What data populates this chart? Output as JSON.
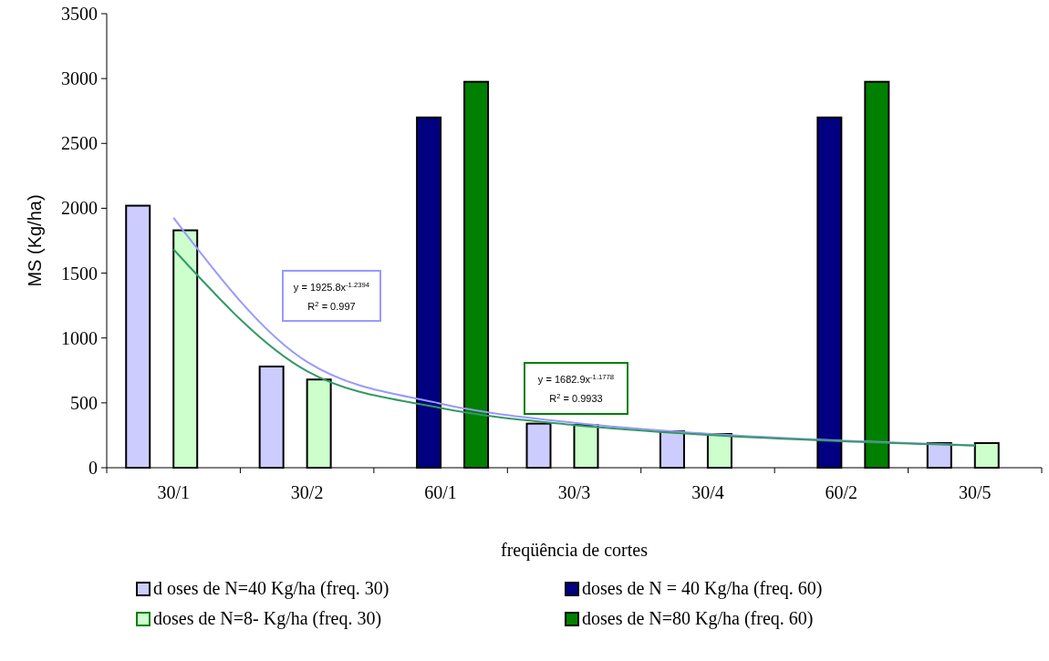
{
  "chart_data": {
    "type": "bar",
    "xlabel": "freqüência de cortes",
    "ylabel": "MS (Kg/ha)",
    "categories": [
      "30/1",
      "30/2",
      "60/1",
      "30/3",
      "30/4",
      "60/2",
      "30/5"
    ],
    "series": [
      {
        "name": "d oses de N=40 Kg/ha (freq. 30)",
        "color": "#ccccff",
        "values": [
          2020,
          780,
          null,
          340,
          280,
          null,
          190
        ]
      },
      {
        "name": "doses de N = 40 Kg/ha (freq. 60)",
        "color": "#000080",
        "values": [
          null,
          null,
          2700,
          null,
          null,
          2700,
          null
        ]
      },
      {
        "name": "doses de N=8- Kg/ha (freq. 30)",
        "color": "#ccffcc",
        "values": [
          1830,
          680,
          null,
          330,
          260,
          null,
          190
        ]
      },
      {
        "name": "doses de N=80 Kg/ha (freq. 60)",
        "color": "#008000",
        "values": [
          null,
          null,
          2975,
          null,
          null,
          2975,
          null
        ]
      },
      {
        "type": "line",
        "color": "#9999ff",
        "values": [
          1926,
          816,
          494,
          346,
          262,
          209,
          173
        ]
      },
      {
        "type": "line",
        "color": "#339966",
        "values": [
          1683,
          744,
          461,
          329,
          253,
          204,
          170
        ]
      }
    ],
    "ylim": [
      0,
      3500
    ],
    "yticks": [
      0,
      500,
      1000,
      1500,
      2000,
      2500,
      3000,
      3500
    ],
    "grid": false,
    "legend": "bottom",
    "annotations": [
      "y = 1925.8x$^{-1.2394}$",
      "R$^{2}$ = 0.997",
      "y = 1682.9x$^{-1.1778}$",
      "R$^{2}$ = 0.9933"
    ]
  }
}
